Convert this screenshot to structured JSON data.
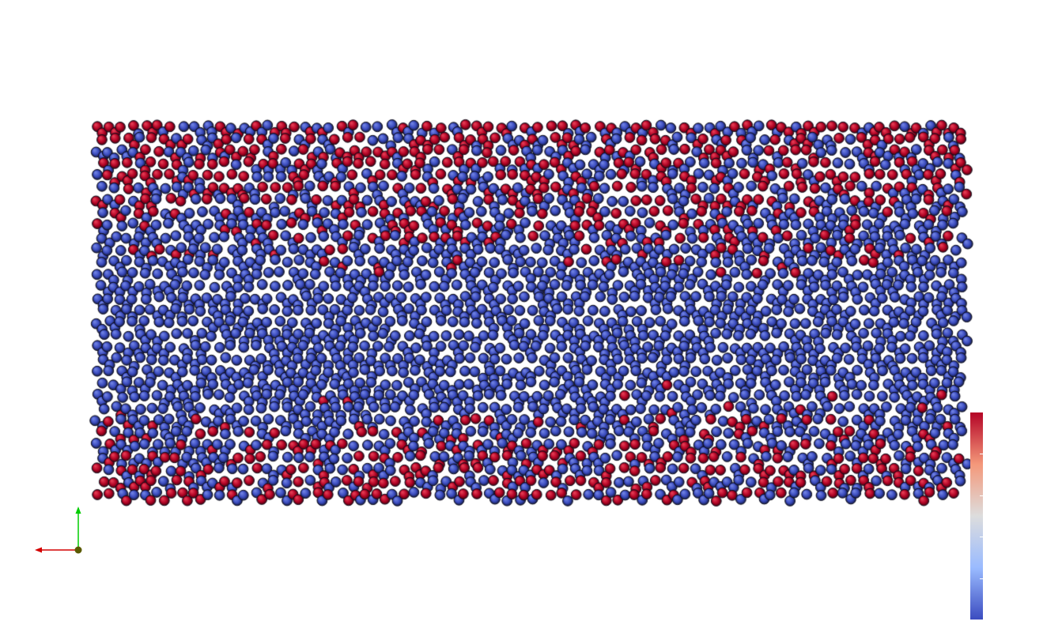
{
  "view": {
    "background": "#ffffff",
    "representation": "particle-sphere-glyphs"
  },
  "particles": {
    "color_map": "cool-to-warm",
    "low_color": "#3b4cc0",
    "high_color": "#b40426",
    "mid_color": "#dddddd",
    "outline_color": "#0d0d1a"
  },
  "axes": {
    "x_color": "#d40000",
    "y_color": "#00cc00",
    "z_color": "#5a5a00"
  },
  "scalar_bar": {
    "tick_count": 5,
    "gradient": [
      "#b40426",
      "#f4987a",
      "#dddddd",
      "#9abbff",
      "#3b4cc0"
    ]
  }
}
